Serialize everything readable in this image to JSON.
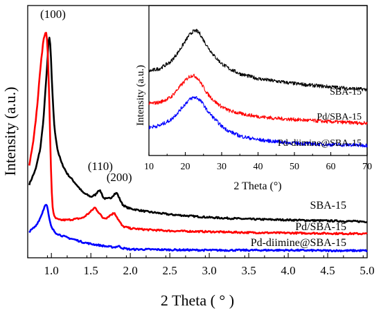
{
  "chart_data": [
    {
      "type": "line",
      "xlabel": "2 Theta ( ° )",
      "ylabel": "Intensity (a.u.)",
      "xlim": [
        0.7,
        5.0
      ],
      "xticks": [
        "1.0",
        "1.5",
        "2.0",
        "2.5",
        "3.0",
        "3.5",
        "4.0",
        "4.5",
        "5.0"
      ],
      "xtick_values": [
        1.0,
        1.5,
        2.0,
        2.5,
        3.0,
        3.5,
        4.0,
        4.5,
        5.0
      ],
      "y_tick_labels_shown": false,
      "legend": "none; series labeled directly at right",
      "peak_labels": [
        {
          "text": "(100)",
          "x": 1.02
        },
        {
          "text": "(110)",
          "x": 1.62
        },
        {
          "text": "(200)",
          "x": 1.86
        }
      ],
      "series": [
        {
          "name": "SBA-15",
          "color": "#000000",
          "x": [
            0.72,
            0.8,
            0.86,
            0.9,
            0.94,
            0.97,
            0.99,
            1.01,
            1.04,
            1.08,
            1.13,
            1.2,
            1.3,
            1.4,
            1.5,
            1.56,
            1.6,
            1.63,
            1.66,
            1.7,
            1.75,
            1.8,
            1.83,
            1.86,
            1.9,
            1.95,
            2.0,
            2.2,
            2.5,
            3.0,
            3.5,
            4.0,
            4.5,
            5.0
          ],
          "y": [
            1.75,
            2.1,
            2.6,
            3.3,
            4.4,
            5.3,
            5.0,
            4.0,
            3.05,
            2.55,
            2.25,
            2.0,
            1.78,
            1.55,
            1.45,
            1.5,
            1.62,
            1.56,
            1.42,
            1.4,
            1.42,
            1.52,
            1.54,
            1.42,
            1.27,
            1.2,
            1.17,
            1.1,
            1.03,
            0.96,
            0.92,
            0.9,
            0.88,
            0.86
          ]
        },
        {
          "name": "Pd/SBA-15",
          "color": "#ff0000",
          "x": [
            0.72,
            0.78,
            0.82,
            0.86,
            0.9,
            0.93,
            0.95,
            0.97,
            0.99,
            1.01,
            1.03,
            1.06,
            1.1,
            1.2,
            1.3,
            1.4,
            1.5,
            1.55,
            1.6,
            1.65,
            1.7,
            1.75,
            1.8,
            1.85,
            1.9,
            2.0,
            2.2,
            2.5,
            3.0,
            3.5,
            4.0,
            4.5,
            5.0
          ],
          "y": [
            2.2,
            2.9,
            3.6,
            4.5,
            5.2,
            5.4,
            5.1,
            4.0,
            2.4,
            1.3,
            1.0,
            0.93,
            0.9,
            0.9,
            0.92,
            0.95,
            1.1,
            1.2,
            1.08,
            0.95,
            0.95,
            1.02,
            1.07,
            0.9,
            0.75,
            0.7,
            0.67,
            0.64,
            0.62,
            0.6,
            0.59,
            0.58,
            0.57
          ]
        },
        {
          "name": "Pd-diimine@SBA-15",
          "color": "#0000ff",
          "x": [
            0.72,
            0.8,
            0.86,
            0.9,
            0.93,
            0.95,
            0.97,
            1.0,
            1.05,
            1.1,
            1.2,
            1.3,
            1.4,
            1.5,
            1.6,
            1.7,
            1.8,
            1.85,
            1.9,
            2.0,
            2.2,
            2.5,
            3.0,
            3.5,
            4.0,
            4.5,
            5.0
          ],
          "y": [
            0.62,
            0.75,
            0.95,
            1.15,
            1.3,
            1.2,
            0.95,
            0.72,
            0.6,
            0.55,
            0.48,
            0.43,
            0.37,
            0.33,
            0.3,
            0.27,
            0.25,
            0.28,
            0.23,
            0.2,
            0.2,
            0.19,
            0.18,
            0.18,
            0.18,
            0.17,
            0.17
          ]
        }
      ]
    },
    {
      "type": "line",
      "xlabel": "2 Theta (°)",
      "ylabel": "Intensity (a.u.)",
      "xlim": [
        10,
        70
      ],
      "xticks": [
        "10",
        "20",
        "30",
        "40",
        "50",
        "60",
        "70"
      ],
      "xtick_values": [
        10,
        20,
        30,
        40,
        50,
        60,
        70
      ],
      "y_tick_labels_shown": false,
      "legend": "none; series labeled directly at right",
      "series": [
        {
          "name": "SBA-15",
          "color": "#000000",
          "x": [
            10,
            13,
            16,
            18,
            20,
            21,
            22,
            23,
            24,
            25,
            26,
            28,
            30,
            32,
            35,
            40,
            45,
            50,
            55,
            60,
            65,
            70
          ],
          "y": [
            2.25,
            2.32,
            2.5,
            2.75,
            3.05,
            3.2,
            3.3,
            3.33,
            3.25,
            3.08,
            2.92,
            2.65,
            2.45,
            2.32,
            2.18,
            2.05,
            1.98,
            1.92,
            1.87,
            1.83,
            1.79,
            1.76
          ]
        },
        {
          "name": "Pd/SBA-15",
          "color": "#ff0000",
          "x": [
            10,
            13,
            16,
            18,
            20,
            21,
            22,
            23,
            24,
            25,
            26,
            28,
            30,
            32,
            35,
            40,
            45,
            50,
            55,
            60,
            65,
            70
          ],
          "y": [
            1.38,
            1.42,
            1.55,
            1.78,
            2.0,
            2.1,
            2.14,
            2.1,
            1.98,
            1.82,
            1.66,
            1.45,
            1.3,
            1.2,
            1.12,
            1.04,
            0.99,
            0.96,
            0.93,
            0.9,
            0.88,
            0.86
          ]
        },
        {
          "name": "Pd-diimine@SBA-15",
          "color": "#0000ff",
          "x": [
            10,
            13,
            16,
            18,
            20,
            21,
            22,
            23,
            24,
            25,
            26,
            28,
            30,
            32,
            35,
            40,
            45,
            50,
            55,
            60,
            65,
            70
          ],
          "y": [
            0.75,
            0.8,
            0.95,
            1.15,
            1.38,
            1.48,
            1.54,
            1.55,
            1.48,
            1.36,
            1.2,
            0.98,
            0.78,
            0.65,
            0.52,
            0.42,
            0.37,
            0.33,
            0.31,
            0.29,
            0.28,
            0.27
          ]
        }
      ]
    }
  ]
}
